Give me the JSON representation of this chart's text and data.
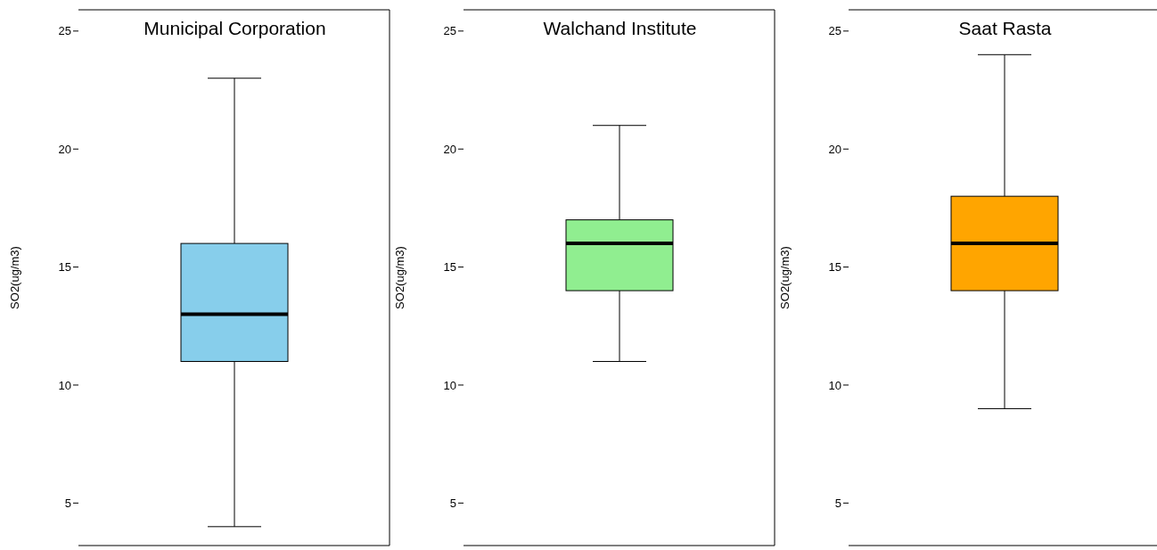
{
  "chart_data": [
    {
      "type": "box",
      "title": "Municipal Corporation",
      "ylabel": "SO2(ug/m3)",
      "categories": [
        null
      ],
      "color": "#87ceeb",
      "ylim": [
        3.2,
        25.9
      ],
      "yticks": [
        5,
        10,
        15,
        20,
        25
      ],
      "tick_labels": "y",
      "grid": false,
      "boxes": [
        {
          "low": 4,
          "q1": 11,
          "median": 13,
          "q3": 16,
          "high": 23
        }
      ]
    },
    {
      "type": "box",
      "title": "Walchand Institute",
      "ylabel": "SO2(ug/m3)",
      "categories": [
        null
      ],
      "color": "#90ee90",
      "ylim": [
        3.2,
        25.9
      ],
      "yticks": [
        5,
        10,
        15,
        20,
        25
      ],
      "tick_labels": "y",
      "grid": false,
      "boxes": [
        {
          "low": 11,
          "q1": 14,
          "median": 16,
          "q3": 17,
          "high": 21
        }
      ]
    },
    {
      "type": "box",
      "title": "Saat Rasta",
      "ylabel": "SO2(ug/m3)",
      "categories": [
        null
      ],
      "color": "#ffa500",
      "ylim": [
        3.2,
        25.9
      ],
      "yticks": [
        5,
        10,
        15,
        20,
        25
      ],
      "tick_labels": "y",
      "grid": false,
      "boxes": [
        {
          "low": 9,
          "q1": 14,
          "median": 16,
          "q3": 18,
          "high": 24
        }
      ]
    }
  ]
}
